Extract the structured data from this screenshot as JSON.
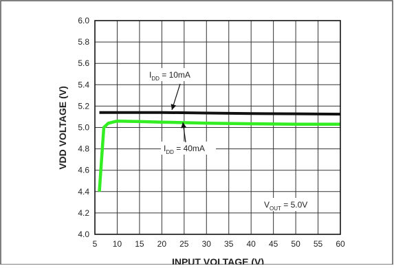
{
  "chart_data": {
    "type": "line",
    "title": "",
    "xlabel": "INPUT VOLTAGE (V)",
    "ylabel": "VDD VOLTAGE (V)",
    "xlim": [
      5,
      60
    ],
    "ylim": [
      4.0,
      6.0
    ],
    "x_ticks": [
      5,
      10,
      15,
      20,
      25,
      30,
      35,
      40,
      45,
      50,
      55,
      60
    ],
    "y_ticks": [
      "4.0",
      "4.2",
      "4.4",
      "4.6",
      "4.8",
      "5.0",
      "5.2",
      "5.4",
      "5.6",
      "5.8",
      "6.0"
    ],
    "grid": true,
    "series": [
      {
        "name": "IDD = 10mA",
        "color": "#111111",
        "x": [
          6,
          10,
          20,
          30,
          40,
          50,
          60
        ],
        "y": [
          5.14,
          5.14,
          5.14,
          5.135,
          5.13,
          5.128,
          5.125
        ]
      },
      {
        "name": "IDD = 40mA",
        "color": "#33ee22",
        "x": [
          6,
          6.5,
          7,
          8,
          10,
          15,
          20,
          30,
          40,
          50,
          60
        ],
        "y": [
          4.4,
          4.7,
          5.0,
          5.04,
          5.06,
          5.055,
          5.05,
          5.04,
          5.035,
          5.03,
          5.03
        ]
      }
    ],
    "annotations": [
      {
        "text_main": "I",
        "text_sub": "DD",
        "text_rest": " = 10mA",
        "target_series": 0
      },
      {
        "text_main": "I",
        "text_sub": "DD",
        "text_rest": " = 40mA",
        "target_series": 1
      },
      {
        "text_main": "V",
        "text_sub": "OUT",
        "text_rest": " = 5.0V"
      }
    ]
  }
}
